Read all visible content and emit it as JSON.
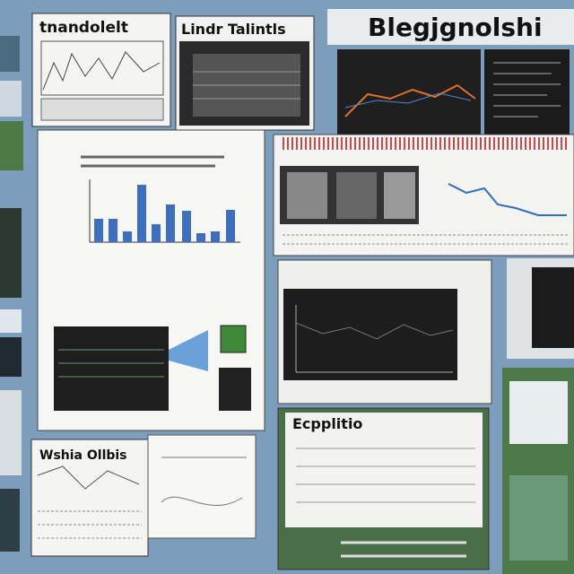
{
  "headings": {
    "top_left": "tnandolelt",
    "top_middle": "Lindr Talintls",
    "top_right": "Blegjgnolshi",
    "bottom_middle": "Ecpplitio",
    "bottom_left": "Wshia Ollbis"
  }
}
